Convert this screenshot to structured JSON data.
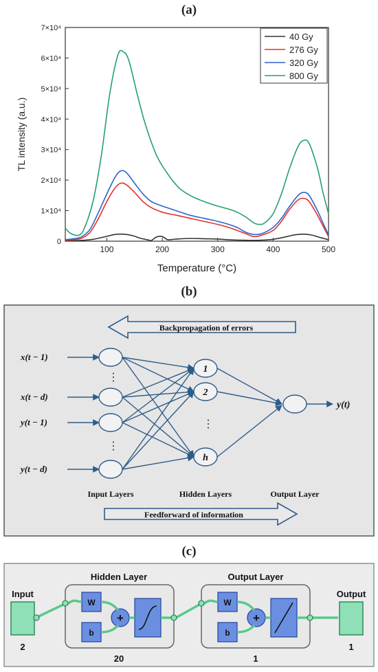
{
  "labels": {
    "a": "(a)",
    "b": "(b)",
    "c": "(c)"
  },
  "chart_data": {
    "type": "line",
    "xlabel": "Temperature (°C)",
    "ylabel": "TL intensity (a.u.)",
    "xlim": [
      25,
      500
    ],
    "ylim": [
      0,
      70000
    ],
    "xticks": [
      100,
      200,
      300,
      400,
      500
    ],
    "yticks": [
      {
        "value": 0,
        "label": "0"
      },
      {
        "value": 10000,
        "label": "1×10⁴"
      },
      {
        "value": 20000,
        "label": "2×10⁴"
      },
      {
        "value": 30000,
        "label": "3×10⁴"
      },
      {
        "value": 40000,
        "label": "4×10⁴"
      },
      {
        "value": 50000,
        "label": "5×10⁴"
      },
      {
        "value": 60000,
        "label": "6×10⁴"
      },
      {
        "value": 70000,
        "label": "7×10⁴"
      }
    ],
    "grid": false,
    "legend_position": "top-right",
    "series": [
      {
        "name": "40 Gy",
        "color": "#333333",
        "x": [
          25,
          50,
          75,
          100,
          115,
          130,
          145,
          160,
          175,
          180,
          190,
          200,
          210,
          225,
          250,
          275,
          300,
          325,
          350,
          375,
          400,
          425,
          440,
          455,
          470,
          485,
          500
        ],
        "y": [
          100,
          200,
          600,
          1600,
          2200,
          2300,
          1900,
          1000,
          400,
          200,
          1400,
          1500,
          500,
          700,
          900,
          800,
          700,
          400,
          300,
          300,
          600,
          1500,
          2100,
          2300,
          2000,
          1200,
          500
        ]
      },
      {
        "name": "276 Gy",
        "color": "#e0302e",
        "x": [
          25,
          40,
          55,
          70,
          85,
          100,
          115,
          125,
          135,
          150,
          165,
          180,
          200,
          225,
          250,
          275,
          300,
          320,
          335,
          350,
          365,
          380,
          400,
          415,
          430,
          445,
          455,
          465,
          480,
          490,
          500
        ],
        "y": [
          300,
          500,
          1000,
          3000,
          7500,
          13000,
          17500,
          19000,
          18500,
          16000,
          13000,
          11000,
          9500,
          8500,
          7500,
          6500,
          5500,
          4500,
          3500,
          2500,
          1500,
          2000,
          3500,
          6500,
          10500,
          13500,
          14000,
          13000,
          8500,
          5000,
          1500
        ]
      },
      {
        "name": "320 Gy",
        "color": "#2a63c9",
        "x": [
          25,
          40,
          55,
          70,
          85,
          100,
          115,
          125,
          135,
          150,
          165,
          180,
          200,
          225,
          250,
          275,
          300,
          320,
          335,
          350,
          365,
          380,
          400,
          415,
          430,
          445,
          455,
          465,
          480,
          490,
          500
        ],
        "y": [
          500,
          800,
          1500,
          4000,
          9500,
          15500,
          21000,
          23000,
          22500,
          19000,
          15500,
          13000,
          11500,
          10000,
          8500,
          7500,
          6500,
          5500,
          4500,
          3000,
          2200,
          2500,
          4500,
          7500,
          11500,
          15000,
          16000,
          15000,
          10000,
          6000,
          2000
        ]
      },
      {
        "name": "800 Gy",
        "color": "#21a06a",
        "x": [
          25,
          35,
          50,
          60,
          75,
          90,
          105,
          120,
          130,
          140,
          155,
          170,
          190,
          210,
          230,
          250,
          275,
          300,
          320,
          335,
          350,
          365,
          375,
          385,
          400,
          415,
          430,
          445,
          455,
          465,
          480,
          490,
          500
        ],
        "y": [
          4300,
          2500,
          2000,
          4500,
          13000,
          28000,
          48000,
          61000,
          62000,
          59000,
          48000,
          38000,
          28000,
          22000,
          17500,
          15000,
          13000,
          11500,
          10500,
          9500,
          8000,
          6000,
          5500,
          6000,
          9000,
          15500,
          24000,
          31000,
          33000,
          32000,
          24000,
          16000,
          9000
        ]
      }
    ]
  },
  "diagram_b": {
    "top_arrow_label": "Backpropagation of errors",
    "bottom_arrow_label": "Feedforward of information",
    "inputs": [
      "x(t − 1)",
      "x(t − d)",
      "y(t − 1)",
      "y(t − d)"
    ],
    "dots": "⋮",
    "hidden_nodes": [
      "1",
      "2",
      "h"
    ],
    "output": "y(t)",
    "layer_labels": [
      "Input Layers",
      "Hidden Layers",
      "Output Layer"
    ]
  },
  "diagram_c": {
    "input_label": "Input",
    "input_size": "2",
    "hidden_title": "Hidden Layer",
    "hidden_size": "20",
    "output_title": "Output Layer",
    "output_size": "1",
    "output_label": "Output",
    "output_count": "1",
    "w_label": "W",
    "b_label": "b",
    "plus": "+"
  }
}
